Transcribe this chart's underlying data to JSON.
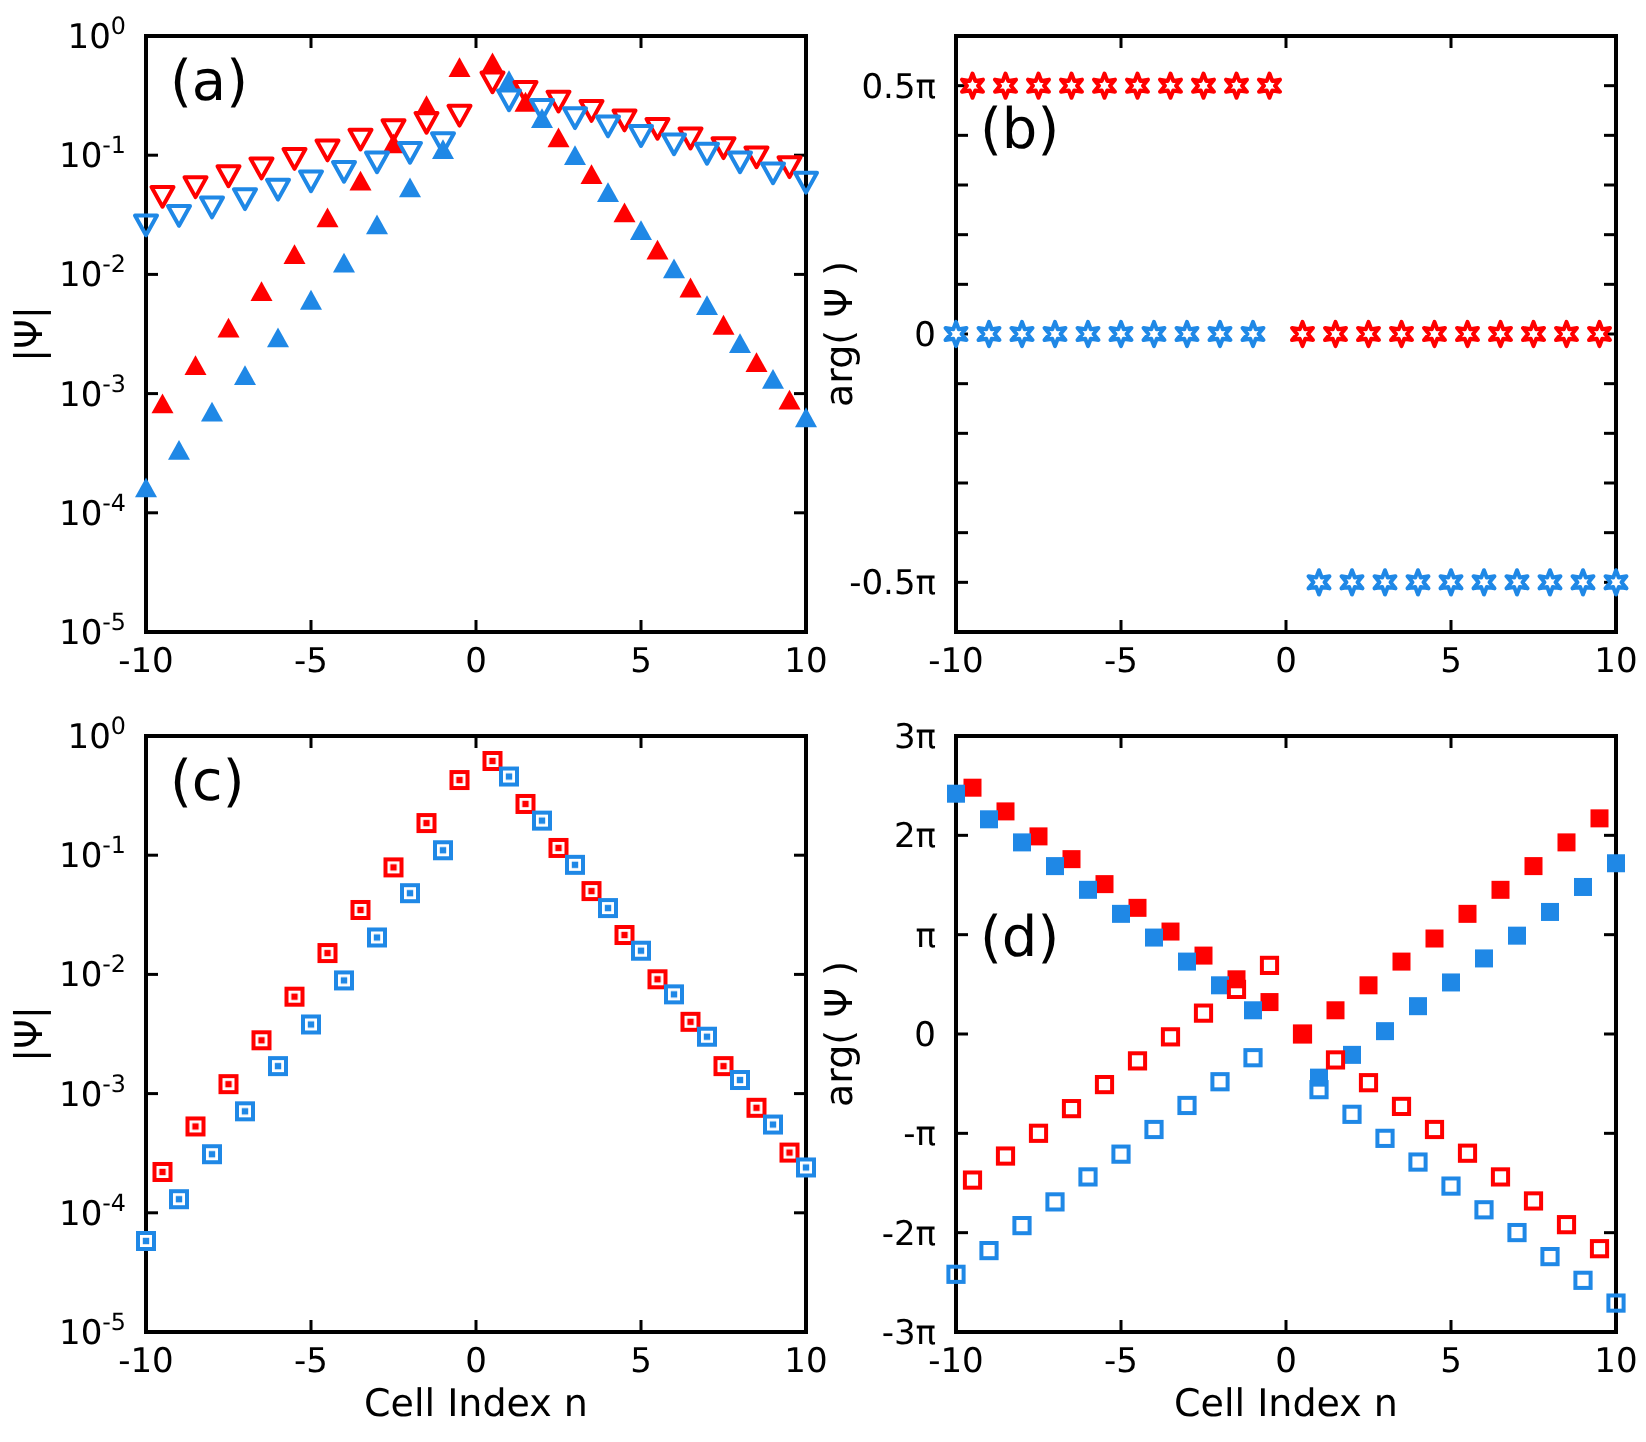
{
  "chart_data": [
    {
      "type": "scatter",
      "log": true,
      "xlim": [
        -10,
        10
      ],
      "xticks": [
        -10,
        -5,
        0,
        5,
        10
      ],
      "ylim": [
        1e-05,
        1
      ],
      "yticks": [
        {
          "value": 1e-05,
          "label": "10$^{-5}$"
        },
        {
          "value": 0.0001,
          "label": "10$^{-4}$"
        },
        {
          "value": 0.001,
          "label": "10$^{-3}$"
        },
        {
          "value": 0.01,
          "label": "10$^{-2}$"
        },
        {
          "value": 0.1,
          "label": "10$^{-1}$"
        },
        {
          "value": 1,
          "label": "10$^{0}$"
        }
      ],
      "ylabel": "|Ψ|",
      "annotations": [
        "(a)"
      ],
      "series": [
        {
          "color": "#ff0000",
          "marker": "triangle",
          "x": [
            -9.5,
            -8.5,
            -7.5,
            -6.5,
            -5.5,
            -4.5,
            -3.5,
            -2.5,
            -1.5,
            -0.5,
            0.5,
            1.5,
            2.5,
            3.5,
            4.5,
            5.5,
            6.5,
            7.5,
            8.5,
            9.5
          ],
          "values": [
            0.00081,
            0.0017,
            0.0035,
            0.0071,
            0.0145,
            0.0295,
            0.06,
            0.123,
            0.257,
            0.537,
            0.589,
            0.275,
            0.138,
            0.068,
            0.0324,
            0.0158,
            0.0076,
            0.0037,
            0.0018,
            0.00087
          ]
        },
        {
          "color": "#1f88e6",
          "marker": "triangle",
          "x": [
            -10,
            -9,
            -8,
            -7,
            -6,
            -5,
            -4,
            -3,
            -2,
            -1,
            1,
            2,
            3,
            4,
            5,
            6,
            7,
            8,
            9,
            10
          ],
          "values": [
            0.00016,
            0.00033,
            0.00069,
            0.0014,
            0.0029,
            0.006,
            0.0123,
            0.0257,
            0.0525,
            0.11,
            0.417,
            0.2,
            0.098,
            0.048,
            0.023,
            0.011,
            0.0054,
            0.0026,
            0.0013,
            0.00062
          ]
        },
        {
          "color": "#ff0000",
          "marker": "triangle-down",
          "x": [
            -9.5,
            -8.5,
            -7.5,
            -6.5,
            -5.5,
            -4.5,
            -3.5,
            -2.5,
            -1.5,
            -0.5,
            0.5,
            1.5,
            2.5,
            3.5,
            4.5,
            5.5,
            6.5,
            7.5,
            8.5,
            9.5
          ],
          "values": [
            0.0457,
            0.055,
            0.068,
            0.079,
            0.095,
            0.112,
            0.138,
            0.166,
            0.191,
            0.219,
            0.417,
            0.347,
            0.288,
            0.24,
            0.2,
            0.17,
            0.141,
            0.117,
            0.098,
            0.081
          ]
        },
        {
          "color": "#1f88e6",
          "marker": "triangle-down",
          "x": [
            -10,
            -9,
            -8,
            -7,
            -6,
            -5,
            -4,
            -3,
            -2,
            -1,
            1,
            2,
            3,
            4,
            5,
            6,
            7,
            8,
            9,
            10
          ],
          "values": [
            0.0263,
            0.0316,
            0.0372,
            0.0437,
            0.0525,
            0.0617,
            0.0741,
            0.089,
            0.107,
            0.129,
            0.295,
            0.245,
            0.209,
            0.178,
            0.148,
            0.126,
            0.105,
            0.089,
            0.072,
            0.06
          ]
        }
      ]
    },
    {
      "type": "scatter",
      "xlim": [
        -10,
        10
      ],
      "xticks": [
        -10,
        -5,
        0,
        5,
        10
      ],
      "ylim": [
        -1.885,
        1.885
      ],
      "yticks": [
        {
          "value": -1.5708,
          "label": "-0.5π"
        },
        {
          "value": -1.25664,
          "label": null
        },
        {
          "value": -0.94248,
          "label": null
        },
        {
          "value": -0.62832,
          "label": null
        },
        {
          "value": -0.31416,
          "label": null
        },
        {
          "value": 0,
          "label": "0"
        },
        {
          "value": 0.31416,
          "label": null
        },
        {
          "value": 0.62832,
          "label": null
        },
        {
          "value": 0.94248,
          "label": null
        },
        {
          "value": 1.25664,
          "label": null
        },
        {
          "value": 1.5708,
          "label": "0.5π"
        }
      ],
      "ylabel": "arg( Ψ )",
      "annotations": [
        "(b)"
      ],
      "series": [
        {
          "color": "#ff0000",
          "x": [
            -9.5,
            -8.5,
            -7.5,
            -6.5,
            -5.5,
            -4.5,
            -3.5,
            -2.5,
            -1.5,
            -0.5,
            0.5,
            1.5,
            2.5,
            3.5,
            4.5,
            5.5,
            6.5,
            7.5,
            8.5,
            9.5
          ],
          "values": [
            1.5708,
            1.5708,
            1.5708,
            1.5708,
            1.5708,
            1.5708,
            1.5708,
            1.5708,
            1.5708,
            1.5708,
            0,
            0,
            0,
            0,
            0,
            0,
            0,
            0,
            0,
            0
          ]
        },
        {
          "color": "#1f88e6",
          "x": [
            -10,
            -9,
            -8,
            -7,
            -6,
            -5,
            -4,
            -3,
            -2,
            -1,
            1,
            2,
            3,
            4,
            5,
            6,
            7,
            8,
            9,
            10
          ],
          "values": [
            0,
            0,
            0,
            0,
            0,
            0,
            0,
            0,
            0,
            0,
            -1.5708,
            -1.5708,
            -1.5708,
            -1.5708,
            -1.5708,
            -1.5708,
            -1.5708,
            -1.5708,
            -1.5708,
            -1.5708
          ]
        }
      ]
    },
    {
      "type": "scatter",
      "log": true,
      "xlim": [
        -10,
        10
      ],
      "xticks": [
        -10,
        -5,
        0,
        5,
        10
      ],
      "ylim": [
        1e-05,
        1
      ],
      "yticks": [
        {
          "value": 1e-05,
          "label": "10$^{-5}$"
        },
        {
          "value": 0.0001,
          "label": "10$^{-4}$"
        },
        {
          "value": 0.001,
          "label": "10$^{-3}$"
        },
        {
          "value": 0.01,
          "label": "10$^{-2}$"
        },
        {
          "value": 0.1,
          "label": "10$^{-1}$"
        },
        {
          "value": 1,
          "label": "10$^{0}$"
        }
      ],
      "ylabel": "|Ψ|",
      "xlabel": "Cell Index n",
      "annotations": [
        "(c)"
      ],
      "series": [
        {
          "color": "#ff0000",
          "marker": "square-dot",
          "x": [
            -9.5,
            -8.5,
            -7.5,
            -6.5,
            -5.5,
            -4.5,
            -3.5,
            -2.5,
            -1.5,
            -0.5,
            0.5,
            1.5,
            2.5,
            3.5,
            4.5,
            5.5,
            6.5,
            7.5,
            8.5,
            9.5
          ],
          "values": [
            0.00022,
            0.00053,
            0.0012,
            0.0028,
            0.0065,
            0.0151,
            0.0347,
            0.079,
            0.186,
            0.427,
            0.617,
            0.269,
            0.115,
            0.05,
            0.0214,
            0.0091,
            0.004,
            0.0017,
            0.00076,
            0.00032
          ]
        },
        {
          "color": "#1f88e6",
          "marker": "square-dot",
          "x": [
            -10,
            -9,
            -8,
            -7,
            -6,
            -5,
            -4,
            -3,
            -2,
            -1,
            1,
            2,
            3,
            4,
            5,
            6,
            7,
            8,
            9,
            10
          ],
          "values": [
            5.8e-05,
            0.00013,
            0.00031,
            0.00071,
            0.0017,
            0.0038,
            0.0089,
            0.0204,
            0.048,
            0.11,
            0.457,
            0.195,
            0.083,
            0.036,
            0.0158,
            0.0068,
            0.003,
            0.0013,
            0.00055,
            0.00024
          ]
        }
      ]
    },
    {
      "type": "scatter",
      "xlim": [
        -10,
        10
      ],
      "xticks": [
        -10,
        -5,
        0,
        5,
        10
      ],
      "ylim": [
        -9.42478,
        9.42478
      ],
      "yticks": [
        {
          "value": -9.42478,
          "label": "-3π"
        },
        {
          "value": -6.28319,
          "label": "-2π"
        },
        {
          "value": -3.14159,
          "label": "-π"
        },
        0,
        {
          "value": 3.14159,
          "label": "π"
        },
        {
          "value": 6.28319,
          "label": "2π"
        },
        {
          "value": 9.42478,
          "label": "3π"
        }
      ],
      "ylabel": "arg( Ψ )",
      "xlabel": "Cell Index n",
      "annotations": [
        "(d)"
      ],
      "series": [
        {
          "color": "#ff0000",
          "marker": "square",
          "x": [
            -9.5,
            -8.5,
            -7.5,
            -6.5,
            -5.5,
            -4.5,
            -3.5,
            -2.5,
            -1.5,
            -0.5,
            0.5,
            1.5,
            2.5,
            3.5,
            4.5,
            5.5,
            6.5,
            7.5,
            8.5,
            9.5
          ],
          "values": [
            7.79,
            7.04,
            6.25,
            5.53,
            4.74,
            3.99,
            3.24,
            2.48,
            1.73,
            1.01,
            0,
            0.75,
            1.54,
            2.29,
            3.02,
            3.8,
            4.56,
            5.31,
            6.06,
            6.82
          ]
        },
        {
          "color": "#1f88e6",
          "marker": "square",
          "x": [
            -10,
            -9,
            -8,
            -7,
            -6,
            -5,
            -4,
            -3,
            -2,
            -1,
            1,
            2,
            3,
            4,
            5,
            6,
            7,
            8,
            9,
            10
          ],
          "values": [
            7.6,
            6.79,
            6.06,
            5.31,
            4.56,
            3.8,
            3.05,
            2.29,
            1.54,
            0.75,
            -1.38,
            -0.66,
            0.09,
            0.88,
            1.63,
            2.39,
            3.11,
            3.86,
            4.65,
            5.4
          ]
        },
        {
          "color": "#ff0000",
          "marker": "square-open",
          "x": [
            -9.5,
            -8.5,
            -7.5,
            -6.5,
            -5.5,
            -4.5,
            -3.5,
            -2.5,
            -1.5,
            -0.5,
            0.5,
            1.5,
            2.5,
            3.5,
            4.5,
            5.5,
            6.5,
            7.5,
            8.5,
            9.5
          ],
          "values": [
            -4.62,
            -3.86,
            -3.14,
            -2.36,
            -1.6,
            -0.85,
            -0.09,
            0.66,
            1.41,
            2.17,
            0,
            -0.82,
            -1.54,
            -2.29,
            -3.02,
            -3.77,
            -4.52,
            -5.28,
            -6.03,
            -6.79
          ]
        },
        {
          "color": "#1f88e6",
          "marker": "square-open",
          "x": [
            -10,
            -9,
            -8,
            -7,
            -6,
            -5,
            -4,
            -3,
            -2,
            -1,
            1,
            2,
            3,
            4,
            5,
            6,
            7,
            8,
            9,
            10
          ],
          "values": [
            -7.6,
            -6.85,
            -6.06,
            -5.31,
            -4.52,
            -3.8,
            -3.02,
            -2.26,
            -1.51,
            -0.75,
            -1.76,
            -2.54,
            -3.3,
            -4.05,
            -4.81,
            -5.56,
            -6.28,
            -7.04,
            -7.79,
            -8.51
          ]
        }
      ]
    }
  ]
}
